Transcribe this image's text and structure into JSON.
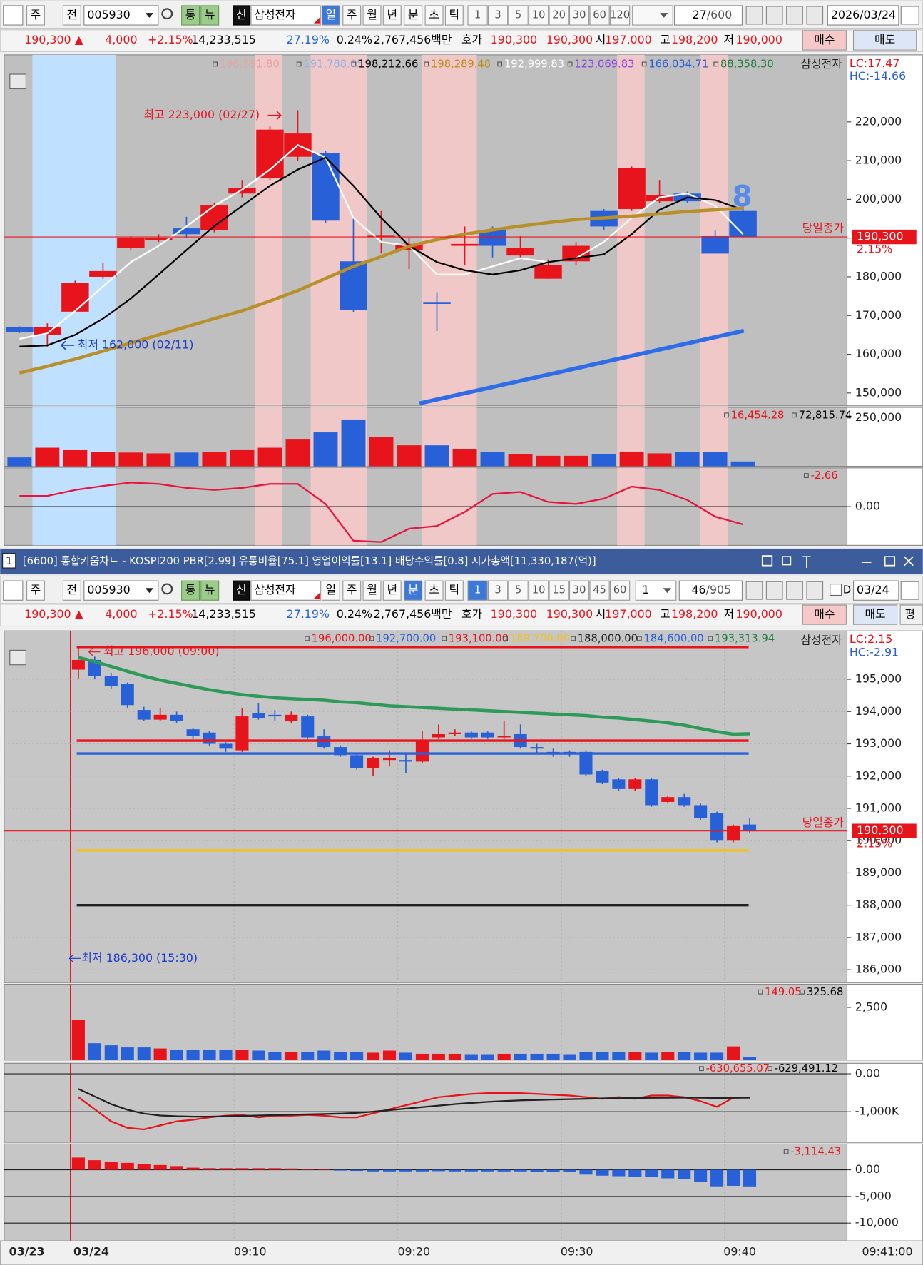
{
  "toolbar_top": {
    "stock_type": "주",
    "prev_label": "전",
    "code": "005930",
    "tong": "통",
    "news": "뉴",
    "credit": "신",
    "name": "삼성전자",
    "periods": [
      "일",
      "주",
      "월",
      "년",
      "분",
      "초",
      "틱"
    ],
    "intervals": [
      "1",
      "3",
      "5",
      "10",
      "20",
      "30",
      "60",
      "120"
    ],
    "count": "27",
    "total": "/600",
    "date": "2026/03/24"
  },
  "info_bar": {
    "price": "190,300 ▲",
    "change": "4,000",
    "rate": "+2.15%",
    "volume": "14,233,515",
    "turnover": "27.19%",
    "ratio": "0.24%",
    "amount": "2,767,456백만",
    "quote_label": "호가",
    "ask": "190,300",
    "bid": "190,300",
    "open_label": "시",
    "open": "197,000",
    "high_label": "고",
    "high": "198,200",
    "low_label": "저",
    "low": "190,000",
    "buy": "매수",
    "sell": "매도",
    "avg": "평"
  },
  "window_title": {
    "index": "1",
    "text": "[6600] 통합키움차트 - KOSPI200 PBR[2.99] 유통비율[75.1] 영업이익률[13.1] 배당수익률[0.8] 시가총액[11,330,187(억)]"
  },
  "toolbar_bottom": {
    "intervals": [
      "1",
      "3",
      "5",
      "10",
      "15",
      "30",
      "45",
      "60"
    ],
    "unit": "1",
    "count": "46",
    "total": "/905",
    "d_label": "D",
    "date": "03/24"
  },
  "time_axis": {
    "labels": [
      "03/23",
      "03/24",
      "09:10",
      "09:20",
      "09:30",
      "09:40"
    ],
    "current": "09:41:00"
  },
  "chart_data": [
    {
      "type": "candlestick",
      "up_color": "#e8141b",
      "down_color": "#2860d8",
      "open": [
        167000,
        165000,
        171000,
        180000,
        187500,
        189500,
        192500,
        192000,
        201500,
        205500,
        211000,
        212000,
        184000,
        190400,
        187000,
        173500,
        188000,
        192000,
        185500,
        179500,
        184000,
        197000,
        197500,
        199500,
        201500,
        190500,
        197000
      ],
      "high": [
        167200,
        168000,
        179000,
        183500,
        190500,
        191000,
        195500,
        199000,
        205000,
        219000,
        223000,
        212500,
        195000,
        197000,
        190000,
        176000,
        193000,
        193000,
        190500,
        184500,
        189000,
        197500,
        208500,
        205000,
        202000,
        192000,
        198200
      ],
      "low": [
        165500,
        162000,
        171000,
        179500,
        187000,
        189000,
        190000,
        191500,
        200500,
        205000,
        210000,
        194000,
        171000,
        186000,
        182000,
        166000,
        183000,
        185000,
        185000,
        179500,
        183000,
        192000,
        197000,
        199000,
        199000,
        186000,
        190000
      ],
      "close": [
        165800,
        167000,
        178500,
        181500,
        190000,
        190000,
        191000,
        198500,
        203000,
        218000,
        217000,
        194500,
        171500,
        190600,
        188500,
        173000,
        188500,
        188000,
        187500,
        183000,
        188000,
        193000,
        208000,
        201000,
        199500,
        186000,
        190300
      ],
      "series": [
        {
          "color": "#ffffff",
          "values": [
            164000,
            165400,
            171200,
            177500,
            183800,
            188000,
            193000,
            198300,
            202500,
            207700,
            214000,
            210800,
            195200,
            189000,
            188000,
            180600,
            180600,
            182700,
            184800,
            183800,
            184800,
            189000,
            195200,
            200500,
            201500,
            198300,
            191000
          ]
        },
        {
          "color": "#000000",
          "values": [
            162000,
            162300,
            165000,
            169200,
            174400,
            180600,
            186900,
            193100,
            198300,
            203500,
            207700,
            210800,
            203500,
            195200,
            188000,
            183800,
            181700,
            180600,
            181700,
            183800,
            184800,
            185800,
            191000,
            197300,
            200500,
            199800,
            197300
          ]
        },
        {
          "color": "#b8902a",
          "values": [
            155200,
            156900,
            158750,
            160800,
            162900,
            165000,
            167100,
            169200,
            171250,
            173750,
            176450,
            179600,
            182700,
            185200,
            187900,
            189600,
            191000,
            192100,
            193100,
            194000,
            194800,
            195200,
            195650,
            196250,
            196850,
            197300,
            197700
          ]
        }
      ],
      "ylim": [
        146700,
        237300
      ],
      "yticks": [
        {
          "value": 150000,
          "label": "150,000"
        },
        {
          "value": 160000,
          "label": "160,000"
        },
        {
          "value": 170000,
          "label": "170,000"
        },
        {
          "value": 180000,
          "label": "180,000"
        },
        {
          "value": 190000,
          "label": "190,000"
        },
        {
          "value": 200000,
          "label": "200,000"
        },
        {
          "value": 210000,
          "label": "210,000"
        },
        {
          "value": 220000,
          "label": "220,000"
        }
      ],
      "legend": [
        {
          "text": "196,591.80",
          "color": "#e8a0a0"
        },
        {
          "text": "191,788.05",
          "color": "#90b0e8"
        },
        {
          "text": "198,212.66",
          "color": "#000000"
        },
        {
          "text": "198,289.48",
          "color": "#c08a1a"
        },
        {
          "text": "192,999.83",
          "color": "#ffffff"
        },
        {
          "text": "123,069.83",
          "color": "#9040e0"
        },
        {
          "text": "166,034.71",
          "color": "#2860d8"
        },
        {
          "text": "88,358.30",
          "color": "#208040"
        }
      ],
      "legend_name": "삼성전자",
      "lc": "LC:17.47",
      "hc": "HC:-14.66",
      "high_note": "최고 223,000 (02/27)",
      "low_note": "최저 162,000 (02/11)",
      "count_note": "8",
      "close_line": {
        "value": 190300,
        "label": "190,300"
      },
      "close_caption": "당일종가",
      "close_rate": "2.15%"
    },
    {
      "type": "bar",
      "values": [
        45800,
        95800,
        83300,
        75000,
        70800,
        66700,
        70800,
        75000,
        83300,
        95800,
        141700,
        175000,
        241700,
        150000,
        108300,
        108300,
        87500,
        75000,
        62500,
        54200,
        54200,
        62500,
        75000,
        66700,
        75000,
        75000,
        25000
      ],
      "ylim": [
        0,
        304000
      ],
      "yticks": [
        {
          "value": 250000,
          "label": "250,000"
        }
      ],
      "legend": [
        {
          "text": "16,454.28",
          "color": "#e8141b"
        },
        {
          "text": "72,815.74",
          "color": "#000000"
        }
      ]
    },
    {
      "type": "line",
      "series": [
        {
          "color": "#e8143c",
          "values": [
            1.6,
            1.6,
            2.5,
            3.1,
            3.6,
            3.4,
            2.8,
            2.5,
            2.8,
            3.4,
            3.4,
            0.4,
            -5.1,
            -5.3,
            -3.3,
            -2.9,
            -0.8,
            1.9,
            2.2,
            0.7,
            0.4,
            1.2,
            3.0,
            2.5,
            1.0,
            -1.5,
            -2.66
          ]
        }
      ],
      "ylim": [
        -5.8,
        5.8
      ],
      "yticks": [
        {
          "value": 0,
          "label": "0.00"
        }
      ],
      "legend": [
        {
          "text": "-2.66",
          "color": "#e8141b"
        }
      ]
    },
    {
      "type": "candlestick",
      "up_color": "#e8141b",
      "down_color": "#2860d8",
      "open": [
        195300,
        195600,
        195100,
        194850,
        194050,
        193750,
        193900,
        193450,
        193350,
        193000,
        192800,
        193950,
        193900,
        193700,
        193850,
        193250,
        192900,
        192650,
        192250,
        192500,
        192500,
        192450,
        193200,
        193300,
        193350,
        193350,
        193200,
        193300,
        192900,
        192750,
        192750,
        192750,
        192150,
        191900,
        191600,
        191900,
        191200,
        191350,
        191100,
        190850,
        190000,
        190500
      ],
      "high": [
        196000,
        195700,
        195200,
        194900,
        194150,
        194100,
        194000,
        193500,
        193400,
        193050,
        194100,
        194250,
        194050,
        194000,
        193900,
        193450,
        192950,
        192700,
        192600,
        192800,
        192700,
        193400,
        193600,
        193450,
        193400,
        193400,
        193700,
        193600,
        193000,
        192850,
        192800,
        192800,
        192200,
        191950,
        191950,
        191950,
        191400,
        191450,
        191150,
        190900,
        190500,
        190700
      ],
      "low": [
        195000,
        195000,
        194700,
        194100,
        193700,
        193700,
        193650,
        193150,
        192950,
        192750,
        192750,
        193750,
        193700,
        193650,
        193150,
        192850,
        192600,
        192200,
        192000,
        192300,
        192100,
        192400,
        193150,
        193250,
        193150,
        193150,
        193150,
        192850,
        192700,
        192600,
        192600,
        192000,
        191750,
        191550,
        191550,
        191050,
        191150,
        191050,
        190650,
        189950,
        189950,
        190250
      ],
      "close": [
        195600,
        195100,
        194800,
        194200,
        193750,
        193900,
        193700,
        193250,
        193000,
        192850,
        193850,
        193800,
        193850,
        193900,
        193200,
        192900,
        192650,
        192250,
        192550,
        192550,
        192450,
        193100,
        193300,
        193350,
        193200,
        193200,
        193250,
        192900,
        192850,
        192700,
        192700,
        192050,
        191800,
        191600,
        191900,
        191100,
        191350,
        191100,
        190700,
        190000,
        190450,
        190300
      ],
      "series": [
        {
          "color": "#2e9a5a",
          "values": [
            195675,
            195550,
            195400,
            195250,
            195100,
            194975,
            194875,
            194775,
            194675,
            194600,
            194525,
            194475,
            194425,
            194400,
            194375,
            194350,
            194300,
            194275,
            194225,
            194175,
            194150,
            194125,
            194100,
            194075,
            194050,
            194025,
            194000,
            193975,
            193950,
            193925,
            193900,
            193875,
            193825,
            193800,
            193750,
            193700,
            193650,
            193575,
            193475,
            193375,
            193300,
            193313.94
          ]
        }
      ],
      "levels": [
        {
          "value": 196000,
          "label": "196,000.00",
          "color": "#e8141b"
        },
        {
          "value": 192700,
          "label": "192,700.00",
          "color": "#2860d8"
        },
        {
          "value": 193100,
          "label": "193,100.00",
          "color": "#e8141b"
        },
        {
          "value": 189700,
          "label": "189,700.00",
          "color": "#f0c020"
        },
        {
          "value": 188000,
          "label": "188,000.00",
          "color": "#222222"
        },
        {
          "value": 184600,
          "label": "184,600.00",
          "color": "#2860d8"
        }
      ],
      "green_label": {
        "text": "193,313.94",
        "color": "#208040"
      },
      "ylim": [
        185600,
        196500
      ],
      "yticks": [
        {
          "value": 186000,
          "label": "186,000"
        },
        {
          "value": 187000,
          "label": "187,000"
        },
        {
          "value": 188000,
          "label": "188,000"
        },
        {
          "value": 189000,
          "label": "189,000"
        },
        {
          "value": 190000,
          "label": "190,000"
        },
        {
          "value": 191000,
          "label": "191,000"
        },
        {
          "value": 192000,
          "label": "192,000"
        },
        {
          "value": 193000,
          "label": "193,000"
        },
        {
          "value": 194000,
          "label": "194,000"
        },
        {
          "value": 195000,
          "label": "195,000"
        }
      ],
      "legend_name": "삼성전자",
      "lc": "LC:2.15",
      "hc": "HC:-2.91",
      "high_note": "최고 196,000 (09:00)",
      "low_note": "최저 186,300 (15:30)",
      "close_line": {
        "value": 190300,
        "label": "190,300"
      },
      "close_caption": "당일종가",
      "close_rate": "2.15%"
    },
    {
      "type": "bar",
      "values": [
        1900,
        800,
        700,
        600,
        600,
        550,
        500,
        500,
        500,
        480,
        480,
        450,
        400,
        400,
        400,
        450,
        400,
        400,
        350,
        450,
        350,
        300,
        300,
        300,
        280,
        280,
        300,
        300,
        300,
        300,
        280,
        400,
        400,
        400,
        400,
        350,
        400,
        400,
        350,
        350,
        650,
        149.05
      ],
      "ylim": [
        0,
        3600
      ],
      "yticks": [
        {
          "value": 2500,
          "label": "2,500"
        }
      ],
      "legend": [
        {
          "text": "149.05",
          "color": "#e8141b"
        },
        {
          "text": "325.68",
          "color": "#000000"
        }
      ]
    },
    {
      "type": "line",
      "series": [
        {
          "color": "#e8141b",
          "values": [
            -617000,
            -936000,
            -1255000,
            -1426000,
            -1468000,
            -1362000,
            -1255000,
            -1213000,
            -1149000,
            -1106000,
            -1085000,
            -1149000,
            -1106000,
            -1106000,
            -1085000,
            -1106000,
            -1149000,
            -1149000,
            -1043000,
            -936000,
            -830000,
            -723000,
            -617000,
            -574000,
            -532000,
            -511000,
            -511000,
            -511000,
            -532000,
            -553000,
            -574000,
            -617000,
            -660000,
            -617000,
            -660000,
            -574000,
            -574000,
            -617000,
            -723000,
            -872000,
            -630000,
            -630655.07
          ]
        },
        {
          "color": "#222222",
          "values": [
            -400000,
            -600000,
            -800000,
            -950000,
            -1050000,
            -1100000,
            -1120000,
            -1130000,
            -1130000,
            -1120000,
            -1110000,
            -1100000,
            -1090000,
            -1080000,
            -1070000,
            -1060000,
            -1050000,
            -1030000,
            -1000000,
            -960000,
            -920000,
            -880000,
            -840000,
            -800000,
            -770000,
            -740000,
            -720000,
            -700000,
            -690000,
            -680000,
            -670000,
            -660000,
            -650000,
            -645000,
            -640000,
            -635000,
            -632000,
            -630000,
            -632000,
            -640000,
            -635000,
            -629491.12
          ]
        }
      ],
      "ylim": [
        -1808500,
        276600
      ],
      "yticks": [
        {
          "value": 0,
          "label": "0.00"
        },
        {
          "value": -1000000,
          "label": "-1,000K"
        }
      ],
      "legend": [
        {
          "text": "-630,655.07",
          "color": "#e8141b"
        },
        {
          "text": "-629,491.12",
          "color": "#000000"
        }
      ]
    },
    {
      "type": "bar",
      "up_color": "#e8141b",
      "down_color": "#2860d8",
      "values": [
        2300,
        1800,
        1500,
        1300,
        1100,
        900,
        700,
        400,
        300,
        300,
        300,
        300,
        300,
        250,
        200,
        150,
        -150,
        -200,
        -300,
        -300,
        -300,
        -300,
        -250,
        -300,
        -300,
        -300,
        -300,
        -300,
        -350,
        -400,
        -450,
        -900,
        -1100,
        -1200,
        -1300,
        -1400,
        -1600,
        -1800,
        -2200,
        -3100,
        -3000,
        -3114.43
      ],
      "ylim": [
        -13333,
        4848
      ],
      "yticks": [
        {
          "value": 0,
          "label": "0.00"
        },
        {
          "value": -5000,
          "label": "-5,000"
        },
        {
          "value": -10000,
          "label": "-10,000"
        }
      ],
      "legend": [
        {
          "text": "-3,114.43",
          "color": "#e8141b"
        }
      ]
    }
  ]
}
